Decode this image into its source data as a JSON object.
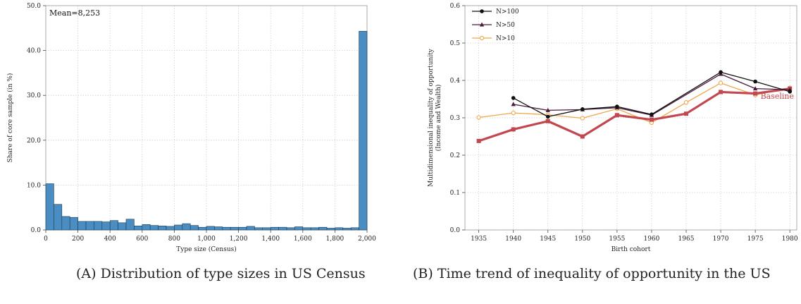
{
  "chart_data": [
    {
      "type": "bar",
      "panel": "A",
      "xlabel": "Type size (Census)",
      "ylabel": "Share of core sample (in %)",
      "annotation": "Mean=8,253",
      "xlim": [
        0,
        2000
      ],
      "ylim": [
        0,
        50
      ],
      "xticks": [
        0,
        200,
        400,
        600,
        800,
        1000,
        1200,
        1400,
        1600,
        1800,
        2000
      ],
      "xtick_labels": [
        "0",
        "200",
        "400",
        "600",
        "800",
        "1,000",
        "1,200",
        "1,400",
        "1,600",
        "1,800",
        "2,000"
      ],
      "yticks": [
        0,
        10,
        20,
        30,
        40,
        50
      ],
      "ytick_labels": [
        "0.0",
        "10.0",
        "20.0",
        "30.0",
        "40.0",
        "50.0"
      ],
      "bin_width": 50,
      "bin_starts": [
        0,
        50,
        100,
        150,
        200,
        250,
        300,
        350,
        400,
        450,
        500,
        550,
        600,
        650,
        700,
        750,
        800,
        850,
        900,
        950,
        1000,
        1050,
        1100,
        1150,
        1200,
        1250,
        1300,
        1350,
        1400,
        1450,
        1500,
        1550,
        1600,
        1650,
        1700,
        1750,
        1800,
        1850,
        1900,
        1950
      ],
      "values": [
        10.3,
        5.7,
        3.0,
        2.8,
        1.9,
        1.9,
        1.9,
        1.8,
        2.1,
        1.6,
        2.4,
        0.9,
        1.2,
        1.0,
        0.9,
        0.8,
        1.1,
        1.4,
        1.0,
        0.6,
        0.8,
        0.7,
        0.6,
        0.6,
        0.6,
        0.8,
        0.5,
        0.5,
        0.6,
        0.6,
        0.5,
        0.7,
        0.5,
        0.5,
        0.6,
        0.4,
        0.5,
        0.4,
        0.5,
        44.3
      ],
      "bar_color": "#4a8dc2",
      "grid": true
    },
    {
      "type": "line",
      "panel": "B",
      "xlabel": "Birth cohort",
      "ylabel_lines": [
        "Multidimensional inequality of opportunity",
        "(Income and Wealth)"
      ],
      "xlim": [
        1933,
        1981
      ],
      "ylim": [
        0,
        0.6
      ],
      "xticks": [
        1935,
        1940,
        1945,
        1950,
        1955,
        1960,
        1965,
        1970,
        1975,
        1980
      ],
      "xtick_labels": [
        "1935",
        "1940",
        "1945",
        "1950",
        "1955",
        "1960",
        "1965",
        "1970",
        "1975",
        "1980"
      ],
      "yticks": [
        0,
        0.1,
        0.2,
        0.3,
        0.4,
        0.5,
        0.6
      ],
      "ytick_labels": [
        "0.0",
        "0.1",
        "0.2",
        "0.3",
        "0.4",
        "0.5",
        "0.6"
      ],
      "legend_position": "top-left",
      "grid": true,
      "series": [
        {
          "name": "N>100",
          "marker": "circle",
          "color": "#111111",
          "x": [
            1940,
            1945,
            1950,
            1955,
            1960,
            1970,
            1975,
            1980
          ],
          "values": [
            0.353,
            0.303,
            0.323,
            0.33,
            0.309,
            0.422,
            0.397,
            0.37
          ]
        },
        {
          "name": "N>50",
          "marker": "triangle",
          "color": "#4b1a3d",
          "x": [
            1940,
            1945,
            1950,
            1955,
            1960,
            1970,
            1975,
            1980
          ],
          "values": [
            0.336,
            0.32,
            0.322,
            0.327,
            0.307,
            0.417,
            0.378,
            0.375
          ]
        },
        {
          "name": "N>10",
          "marker": "hollow-circle",
          "color": "#f0a848",
          "x": [
            1935,
            1940,
            1945,
            1950,
            1955,
            1960,
            1965,
            1970,
            1975,
            1980
          ],
          "values": [
            0.301,
            0.313,
            0.308,
            0.299,
            0.324,
            0.287,
            0.341,
            0.393,
            0.361,
            0.38
          ]
        },
        {
          "name": "Baseline",
          "marker": "square",
          "color": "#c2474f",
          "label_on_chart": true,
          "x": [
            1935,
            1940,
            1945,
            1950,
            1955,
            1960,
            1965,
            1970,
            1975,
            1980
          ],
          "values": [
            0.238,
            0.269,
            0.291,
            0.25,
            0.307,
            0.295,
            0.311,
            0.369,
            0.365,
            0.378
          ]
        }
      ]
    }
  ],
  "captions": {
    "a": {
      "label": "(A)",
      "text": "Distribution of type sizes in US Census"
    },
    "b": {
      "label": "(B)",
      "text": "Time trend of inequality of opportunity in the US"
    }
  }
}
